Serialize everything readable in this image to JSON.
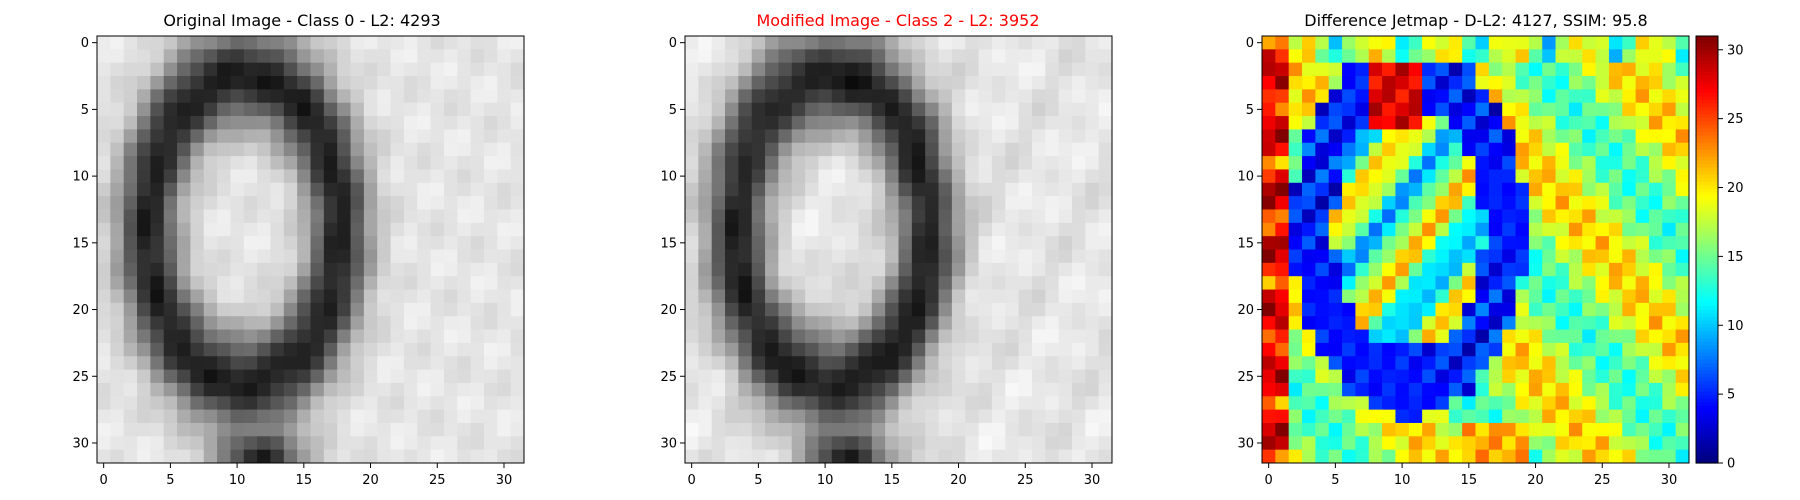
{
  "panels": [
    {
      "id": "original",
      "title": "Original Image - Class 0 - L2: 4293",
      "title_color": "#000000",
      "colormap": "gray",
      "xticks": [
        "0",
        "5",
        "10",
        "15",
        "20",
        "25",
        "30"
      ],
      "yticks": [
        "0",
        "5",
        "10",
        "15",
        "20",
        "25",
        "30"
      ]
    },
    {
      "id": "modified",
      "title": "Modified Image - Class 2 - L2: 3952",
      "title_color": "#ff0000",
      "colormap": "gray",
      "xticks": [
        "0",
        "5",
        "10",
        "15",
        "20",
        "25",
        "30"
      ],
      "yticks": [
        "0",
        "5",
        "10",
        "15",
        "20",
        "25",
        "30"
      ]
    },
    {
      "id": "difference",
      "title": "Difference Jetmap - D-L2: 4127, SSIM: 95.8",
      "title_color": "#000000",
      "colormap": "jet",
      "xticks": [
        "0",
        "5",
        "10",
        "15",
        "20",
        "25",
        "30"
      ],
      "yticks": [
        "0",
        "5",
        "10",
        "15",
        "20",
        "25",
        "30"
      ]
    }
  ],
  "colorbar": {
    "ticks": [
      "0",
      "5",
      "10",
      "15",
      "20",
      "25",
      "30"
    ],
    "range": [
      0,
      31
    ],
    "colormap": "jet"
  },
  "chart_data": {
    "type": "heatmap",
    "grid_size": [
      32,
      32
    ],
    "x_range": [
      0,
      31
    ],
    "y_range": [
      0,
      31
    ],
    "description_of_values": "pixel intensity images (grayscale) and per-pixel difference magnitude (jet)",
    "difference_range": [
      0,
      31
    ]
  }
}
